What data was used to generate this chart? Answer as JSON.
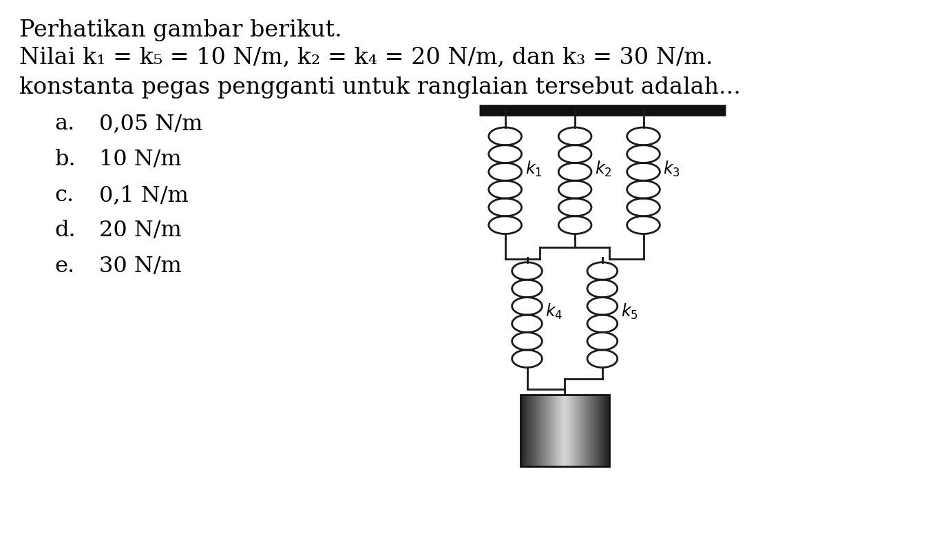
{
  "title_line1": "Perhatikan gambar berikut.",
  "title_line2": "Nilai k₁ = k₅ = 10 N/m, k₂ = k₄ = 20 N/m, dan k₃ = 30 N/m.",
  "title_line3": "konstanta pegas pengganti untuk ranglaian tersebut adalah...",
  "options": [
    [
      "a.",
      "0,05 N/m"
    ],
    [
      "b.",
      "10 N/m"
    ],
    [
      "c.",
      "0,1 N/m"
    ],
    [
      "d.",
      "20 N/m"
    ],
    [
      "e.",
      "30 N/m"
    ]
  ],
  "bg_color": "#ffffff",
  "text_color": "#000000",
  "spring_color": "#1a1a1a",
  "bar_color": "#111111",
  "font_size_title": 24,
  "font_size_option": 23,
  "font_size_label": 17
}
